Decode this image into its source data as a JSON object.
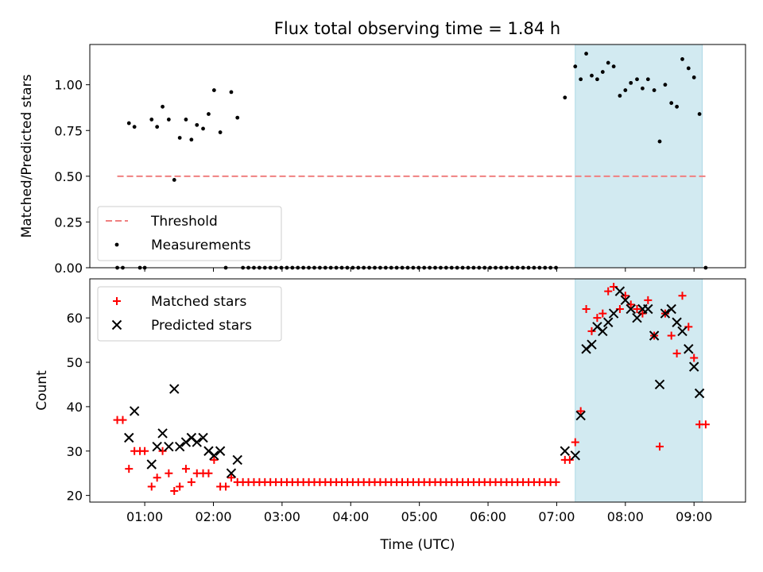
{
  "figure": {
    "title": "Flux total observing time = 1.84 h"
  },
  "chart_data": [
    {
      "type": "scatter",
      "panel": "top",
      "ylabel": "Matched/Predicted stars",
      "ylim": [
        0,
        1.22
      ],
      "xlim": [
        0.2,
        9.75
      ],
      "yticks": [
        0.0,
        0.25,
        0.5,
        0.75,
        1.0
      ],
      "ytick_labels": [
        "0.00",
        "0.25",
        "0.50",
        "0.75",
        "1.00"
      ],
      "shaded_region": {
        "x_start": 7.27,
        "x_end": 9.12,
        "color": "#add8e6"
      },
      "legend_position": "lower left",
      "legend": [
        {
          "label": "Threshold",
          "style": "dashed-line",
          "color": "#f08080"
        },
        {
          "label": "Measurements",
          "style": "dot",
          "color": "#000000"
        }
      ],
      "series": [
        {
          "name": "Threshold",
          "kind": "line",
          "color": "#f08080",
          "x": [
            0.6,
            9.2
          ],
          "y": [
            0.5,
            0.5
          ]
        },
        {
          "name": "Measurements",
          "kind": "dots",
          "color": "#000000",
          "points": [
            [
              0.6,
              0.0
            ],
            [
              0.68,
              0.0
            ],
            [
              0.77,
              0.79
            ],
            [
              0.85,
              0.77
            ],
            [
              0.93,
              0.0
            ],
            [
              1.0,
              0.0
            ],
            [
              1.1,
              0.81
            ],
            [
              1.18,
              0.77
            ],
            [
              1.26,
              0.88
            ],
            [
              1.35,
              0.81
            ],
            [
              1.43,
              0.48
            ],
            [
              1.51,
              0.71
            ],
            [
              1.6,
              0.81
            ],
            [
              1.68,
              0.7
            ],
            [
              1.76,
              0.78
            ],
            [
              1.85,
              0.76
            ],
            [
              1.93,
              0.84
            ],
            [
              2.01,
              0.97
            ],
            [
              2.1,
              0.74
            ],
            [
              2.18,
              0.0
            ],
            [
              2.26,
              0.96
            ],
            [
              2.35,
              0.82
            ],
            [
              2.43,
              0.0
            ],
            [
              2.51,
              0.0
            ],
            [
              2.59,
              0.0
            ],
            [
              2.67,
              0.0
            ],
            [
              2.75,
              0.0
            ],
            [
              2.83,
              0.0
            ],
            [
              2.91,
              0.0
            ],
            [
              2.99,
              0.0
            ],
            [
              3.07,
              0.0
            ],
            [
              3.15,
              0.0
            ],
            [
              3.23,
              0.0
            ],
            [
              3.31,
              0.0
            ],
            [
              3.39,
              0.0
            ],
            [
              3.47,
              0.0
            ],
            [
              3.55,
              0.0
            ],
            [
              3.63,
              0.0
            ],
            [
              3.71,
              0.0
            ],
            [
              3.79,
              0.0
            ],
            [
              3.87,
              0.0
            ],
            [
              3.95,
              0.0
            ],
            [
              4.03,
              0.0
            ],
            [
              4.11,
              0.0
            ],
            [
              4.19,
              0.0
            ],
            [
              4.27,
              0.0
            ],
            [
              4.35,
              0.0
            ],
            [
              4.43,
              0.0
            ],
            [
              4.51,
              0.0
            ],
            [
              4.59,
              0.0
            ],
            [
              4.67,
              0.0
            ],
            [
              4.75,
              0.0
            ],
            [
              4.83,
              0.0
            ],
            [
              4.91,
              0.0
            ],
            [
              4.99,
              0.0
            ],
            [
              5.07,
              0.0
            ],
            [
              5.15,
              0.0
            ],
            [
              5.23,
              0.0
            ],
            [
              5.31,
              0.0
            ],
            [
              5.39,
              0.0
            ],
            [
              5.47,
              0.0
            ],
            [
              5.55,
              0.0
            ],
            [
              5.63,
              0.0
            ],
            [
              5.71,
              0.0
            ],
            [
              5.79,
              0.0
            ],
            [
              5.87,
              0.0
            ],
            [
              5.95,
              0.0
            ],
            [
              6.03,
              0.0
            ],
            [
              6.11,
              0.0
            ],
            [
              6.19,
              0.0
            ],
            [
              6.27,
              0.0
            ],
            [
              6.35,
              0.0
            ],
            [
              6.43,
              0.0
            ],
            [
              6.51,
              0.0
            ],
            [
              6.59,
              0.0
            ],
            [
              6.67,
              0.0
            ],
            [
              6.75,
              0.0
            ],
            [
              6.83,
              0.0
            ],
            [
              6.91,
              0.0
            ],
            [
              6.99,
              0.0
            ],
            [
              7.12,
              0.93
            ],
            [
              7.27,
              1.1
            ],
            [
              7.35,
              1.03
            ],
            [
              7.43,
              1.17
            ],
            [
              7.51,
              1.05
            ],
            [
              7.59,
              1.03
            ],
            [
              7.67,
              1.07
            ],
            [
              7.75,
              1.12
            ],
            [
              7.83,
              1.1
            ],
            [
              7.92,
              0.94
            ],
            [
              8.0,
              0.97
            ],
            [
              8.08,
              1.01
            ],
            [
              8.17,
              1.03
            ],
            [
              8.25,
              0.98
            ],
            [
              8.33,
              1.03
            ],
            [
              8.42,
              0.97
            ],
            [
              8.5,
              0.69
            ],
            [
              8.58,
              1.0
            ],
            [
              8.67,
              0.9
            ],
            [
              8.75,
              0.88
            ],
            [
              8.83,
              1.14
            ],
            [
              8.92,
              1.09
            ],
            [
              9.0,
              1.04
            ],
            [
              9.08,
              0.84
            ],
            [
              9.17,
              0.0
            ]
          ]
        }
      ]
    },
    {
      "type": "scatter",
      "panel": "bottom",
      "xlabel": "Time (UTC)",
      "ylabel": "Count",
      "ylim": [
        18.5,
        68.8
      ],
      "xlim": [
        0.2,
        9.75
      ],
      "yticks": [
        20,
        30,
        40,
        50,
        60
      ],
      "ytick_labels": [
        "20",
        "30",
        "40",
        "50",
        "60"
      ],
      "xticks": [
        1,
        2,
        3,
        4,
        5,
        6,
        7,
        8,
        9
      ],
      "xtick_labels": [
        "01:00",
        "02:00",
        "03:00",
        "04:00",
        "05:00",
        "06:00",
        "07:00",
        "08:00",
        "09:00"
      ],
      "shaded_region": {
        "x_start": 7.27,
        "x_end": 9.12,
        "color": "#add8e6"
      },
      "legend_position": "upper left",
      "legend": [
        {
          "label": "Matched stars",
          "style": "plus",
          "color": "#ff0000"
        },
        {
          "label": "Predicted stars",
          "style": "cross",
          "color": "#000000"
        }
      ],
      "series": [
        {
          "name": "Matched stars",
          "kind": "plus",
          "color": "#ff0000",
          "points": [
            [
              0.6,
              37
            ],
            [
              0.68,
              37
            ],
            [
              0.77,
              26
            ],
            [
              0.85,
              30
            ],
            [
              0.93,
              30
            ],
            [
              1.0,
              30
            ],
            [
              1.1,
              22
            ],
            [
              1.18,
              24
            ],
            [
              1.26,
              30
            ],
            [
              1.35,
              25
            ],
            [
              1.43,
              21
            ],
            [
              1.51,
              22
            ],
            [
              1.6,
              26
            ],
            [
              1.68,
              23
            ],
            [
              1.76,
              25
            ],
            [
              1.85,
              25
            ],
            [
              1.93,
              25
            ],
            [
              2.01,
              28
            ],
            [
              2.1,
              22
            ],
            [
              2.18,
              22
            ],
            [
              2.26,
              24
            ],
            [
              2.35,
              23
            ],
            [
              2.43,
              23
            ],
            [
              2.51,
              23
            ],
            [
              2.59,
              23
            ],
            [
              2.67,
              23
            ],
            [
              2.75,
              23
            ],
            [
              2.83,
              23
            ],
            [
              2.91,
              23
            ],
            [
              2.99,
              23
            ],
            [
              3.07,
              23
            ],
            [
              3.15,
              23
            ],
            [
              3.23,
              23
            ],
            [
              3.31,
              23
            ],
            [
              3.39,
              23
            ],
            [
              3.47,
              23
            ],
            [
              3.55,
              23
            ],
            [
              3.63,
              23
            ],
            [
              3.71,
              23
            ],
            [
              3.79,
              23
            ],
            [
              3.87,
              23
            ],
            [
              3.95,
              23
            ],
            [
              4.03,
              23
            ],
            [
              4.11,
              23
            ],
            [
              4.19,
              23
            ],
            [
              4.27,
              23
            ],
            [
              4.35,
              23
            ],
            [
              4.43,
              23
            ],
            [
              4.51,
              23
            ],
            [
              4.59,
              23
            ],
            [
              4.67,
              23
            ],
            [
              4.75,
              23
            ],
            [
              4.83,
              23
            ],
            [
              4.91,
              23
            ],
            [
              4.99,
              23
            ],
            [
              5.07,
              23
            ],
            [
              5.15,
              23
            ],
            [
              5.23,
              23
            ],
            [
              5.31,
              23
            ],
            [
              5.39,
              23
            ],
            [
              5.47,
              23
            ],
            [
              5.55,
              23
            ],
            [
              5.63,
              23
            ],
            [
              5.71,
              23
            ],
            [
              5.79,
              23
            ],
            [
              5.87,
              23
            ],
            [
              5.95,
              23
            ],
            [
              6.03,
              23
            ],
            [
              6.11,
              23
            ],
            [
              6.19,
              23
            ],
            [
              6.27,
              23
            ],
            [
              6.35,
              23
            ],
            [
              6.43,
              23
            ],
            [
              6.51,
              23
            ],
            [
              6.59,
              23
            ],
            [
              6.67,
              23
            ],
            [
              6.75,
              23
            ],
            [
              6.83,
              23
            ],
            [
              6.91,
              23
            ],
            [
              6.99,
              23
            ],
            [
              7.12,
              28
            ],
            [
              7.19,
              28
            ],
            [
              7.27,
              32
            ],
            [
              7.35,
              39
            ],
            [
              7.43,
              62
            ],
            [
              7.51,
              57
            ],
            [
              7.59,
              60
            ],
            [
              7.67,
              61
            ],
            [
              7.75,
              66
            ],
            [
              7.83,
              67
            ],
            [
              7.92,
              62
            ],
            [
              8.0,
              65
            ],
            [
              8.08,
              63
            ],
            [
              8.17,
              62
            ],
            [
              8.25,
              61
            ],
            [
              8.33,
              64
            ],
            [
              8.42,
              56
            ],
            [
              8.5,
              31
            ],
            [
              8.58,
              61
            ],
            [
              8.67,
              56
            ],
            [
              8.75,
              52
            ],
            [
              8.83,
              65
            ],
            [
              8.92,
              58
            ],
            [
              9.0,
              51
            ],
            [
              9.08,
              36
            ],
            [
              9.17,
              36
            ]
          ]
        },
        {
          "name": "Predicted stars",
          "kind": "cross",
          "color": "#000000",
          "points": [
            [
              0.77,
              33
            ],
            [
              0.85,
              39
            ],
            [
              1.1,
              27
            ],
            [
              1.18,
              31
            ],
            [
              1.26,
              34
            ],
            [
              1.35,
              31
            ],
            [
              1.43,
              44
            ],
            [
              1.51,
              31
            ],
            [
              1.6,
              32
            ],
            [
              1.68,
              33
            ],
            [
              1.76,
              32
            ],
            [
              1.85,
              33
            ],
            [
              1.93,
              30
            ],
            [
              2.01,
              29
            ],
            [
              2.1,
              30
            ],
            [
              2.26,
              25
            ],
            [
              2.35,
              28
            ],
            [
              7.12,
              30
            ],
            [
              7.27,
              29
            ],
            [
              7.35,
              38
            ],
            [
              7.43,
              53
            ],
            [
              7.51,
              54
            ],
            [
              7.59,
              58
            ],
            [
              7.67,
              57
            ],
            [
              7.75,
              59
            ],
            [
              7.83,
              61
            ],
            [
              7.92,
              66
            ],
            [
              8.0,
              64
            ],
            [
              8.08,
              62
            ],
            [
              8.17,
              60
            ],
            [
              8.25,
              62
            ],
            [
              8.33,
              62
            ],
            [
              8.42,
              56
            ],
            [
              8.5,
              45
            ],
            [
              8.58,
              61
            ],
            [
              8.67,
              62
            ],
            [
              8.75,
              59
            ],
            [
              8.83,
              57
            ],
            [
              8.92,
              53
            ],
            [
              9.0,
              49
            ],
            [
              9.08,
              43
            ]
          ]
        }
      ]
    }
  ]
}
